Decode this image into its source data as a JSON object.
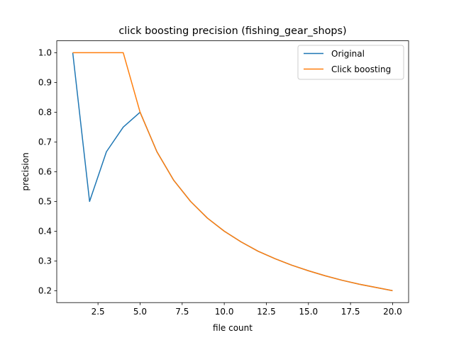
{
  "chart_data": {
    "type": "line",
    "title": "click boosting precision (fishing_gear_shops)",
    "xlabel": "file count",
    "ylabel": "precision",
    "xlim": [
      0.05,
      20.95
    ],
    "ylim": [
      0.16,
      1.04
    ],
    "xticks": [
      2.5,
      5.0,
      7.5,
      10.0,
      12.5,
      15.0,
      17.5,
      20.0
    ],
    "xtick_labels": [
      "2.5",
      "5.0",
      "7.5",
      "10.0",
      "12.5",
      "15.0",
      "17.5",
      "20.0"
    ],
    "yticks": [
      0.2,
      0.3,
      0.4,
      0.5,
      0.6,
      0.7,
      0.8,
      0.9,
      1.0
    ],
    "ytick_labels": [
      "0.2",
      "0.3",
      "0.4",
      "0.5",
      "0.6",
      "0.7",
      "0.8",
      "0.9",
      "1.0"
    ],
    "grid": false,
    "legend_position": "top-right",
    "x": [
      1,
      2,
      3,
      4,
      5,
      6,
      7,
      8,
      9,
      10,
      11,
      12,
      13,
      14,
      15,
      16,
      17,
      18,
      19,
      20
    ],
    "series": [
      {
        "name": "Original",
        "color": "#1f77b4",
        "values": [
          1.0,
          0.5,
          0.667,
          0.75,
          0.8,
          0.667,
          0.571,
          0.5,
          0.444,
          0.4,
          0.364,
          0.333,
          0.308,
          0.286,
          0.267,
          0.25,
          0.235,
          0.222,
          0.211,
          0.2
        ]
      },
      {
        "name": "Click boosting",
        "color": "#ff7f0e",
        "values": [
          1.0,
          1.0,
          1.0,
          1.0,
          0.8,
          0.667,
          0.571,
          0.5,
          0.444,
          0.4,
          0.364,
          0.333,
          0.308,
          0.286,
          0.267,
          0.25,
          0.235,
          0.222,
          0.211,
          0.2
        ]
      }
    ]
  }
}
